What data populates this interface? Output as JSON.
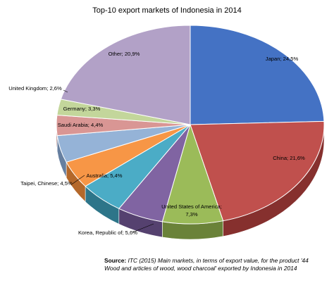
{
  "chart_data": {
    "type": "pie",
    "title": "Top-10 export markets of Indonesia in 2014",
    "slices": [
      {
        "label": "Japan; 24,5%",
        "value": 24.5,
        "color": "#4472c4",
        "side": "#2e4f8a"
      },
      {
        "label": "China; 21,6%",
        "value": 21.6,
        "color": "#c0504d",
        "side": "#86302e"
      },
      {
        "label": "United States of America; 7,3%",
        "value": 7.3,
        "color": "#9bbb59",
        "side": "#6a8239"
      },
      {
        "label": "Korea, Republic of; 5,6%",
        "value": 5.6,
        "color": "#8064a2",
        "side": "#55416f"
      },
      {
        "label": "Australia; 5,4%",
        "value": 5.4,
        "color": "#4bacc6",
        "side": "#2d7589"
      },
      {
        "label": "Taipei, Chinese; 4,5%",
        "value": 4.5,
        "color": "#f79646",
        "side": "#b4682a"
      },
      {
        "label": "Saudi Arabia; 4,4%",
        "value": 4.4,
        "color": "#95b3d7",
        "side": "#667fa0"
      },
      {
        "label": "Germany; 3,3%",
        "value": 3.3,
        "color": "#d99694",
        "side": "#a06563"
      },
      {
        "label": "United Kingdom; 2,6%",
        "value": 2.6,
        "color": "#c3d69b",
        "side": "#8d9d6b"
      },
      {
        "label": "Other; 20,9%",
        "value": 20.9,
        "color": "#b2a1c7",
        "side": "#7f7094"
      }
    ]
  },
  "source": {
    "prefix": "Source:",
    "text": " ITC (2015) Main markets, in terms of export value, for the product '44 Wood and articles of wood, wood charcoal' exported by Indonesia in 2014"
  }
}
